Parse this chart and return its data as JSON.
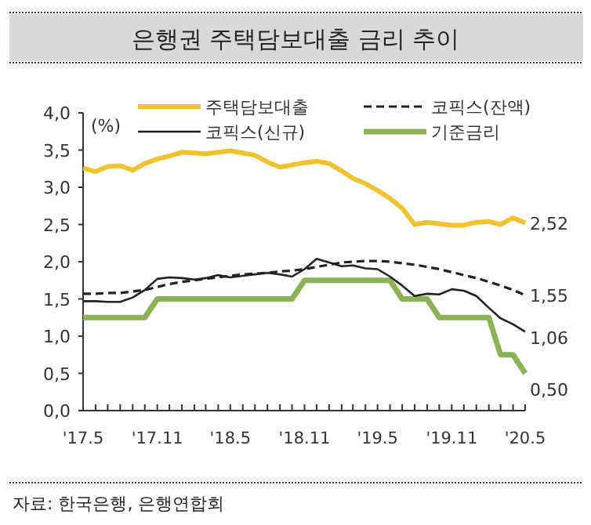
{
  "chart_data": {
    "type": "line",
    "title": "은행권 주택담보대출 금리 추이",
    "ylabel": "(%)",
    "annotations": [
      {
        "text": "2,52",
        "x": "2020-05",
        "y": 2.52
      },
      {
        "text": "1,55",
        "x": "2020-05",
        "y": 1.55
      },
      {
        "text": "1,06",
        "x": "2020-05",
        "y": 1.06
      },
      {
        "text": "0,50",
        "x": "2020-05",
        "y": 0.5
      },
      "자료: 한국은행, 은행연합회"
    ],
    "x": [
      "2017-05",
      "2017-06",
      "2017-07",
      "2017-08",
      "2017-09",
      "2017-10",
      "2017-11",
      "2017-12",
      "2018-01",
      "2018-02",
      "2018-03",
      "2018-04",
      "2018-05",
      "2018-06",
      "2018-07",
      "2018-08",
      "2018-09",
      "2018-10",
      "2018-11",
      "2018-12",
      "2019-01",
      "2019-02",
      "2019-03",
      "2019-04",
      "2019-05",
      "2019-06",
      "2019-07",
      "2019-08",
      "2019-09",
      "2019-10",
      "2019-11",
      "2019-12",
      "2020-01",
      "2020-02",
      "2020-03",
      "2020-04",
      "2020-05"
    ],
    "series": [
      {
        "name": "주택담보대출",
        "color": "#f2c12e",
        "line_style": "solid",
        "values": [
          3.26,
          3.21,
          3.28,
          3.29,
          3.23,
          3.32,
          3.38,
          3.42,
          3.47,
          3.46,
          3.45,
          3.47,
          3.49,
          3.46,
          3.43,
          3.34,
          3.27,
          3.3,
          3.33,
          3.35,
          3.32,
          3.22,
          3.12,
          3.05,
          2.96,
          2.85,
          2.72,
          2.5,
          2.53,
          2.51,
          2.49,
          2.49,
          2.53,
          2.54,
          2.5,
          2.59,
          2.52
        ]
      },
      {
        "name": "코픽스(잔액)",
        "color": "#222222",
        "line_style": "dashed",
        "values": [
          1.57,
          1.57,
          1.58,
          1.58,
          1.6,
          1.62,
          1.66,
          1.7,
          1.73,
          1.75,
          1.77,
          1.79,
          1.81,
          1.83,
          1.84,
          1.85,
          1.87,
          1.88,
          1.9,
          1.93,
          1.96,
          1.99,
          2.0,
          2.01,
          2.01,
          2.0,
          1.98,
          1.96,
          1.93,
          1.9,
          1.86,
          1.82,
          1.78,
          1.73,
          1.68,
          1.62,
          1.55
        ]
      },
      {
        "name": "코픽스(신규)",
        "color": "#222222",
        "line_style": "solid",
        "values": [
          1.47,
          1.47,
          1.46,
          1.46,
          1.52,
          1.62,
          1.77,
          1.79,
          1.78,
          1.76,
          1.78,
          1.82,
          1.79,
          1.81,
          1.83,
          1.85,
          1.83,
          1.8,
          1.9,
          2.04,
          1.99,
          1.94,
          1.95,
          1.91,
          1.9,
          1.8,
          1.68,
          1.54,
          1.57,
          1.56,
          1.63,
          1.61,
          1.54,
          1.38,
          1.24,
          1.16,
          1.06
        ]
      },
      {
        "name": "기준금리",
        "color": "#8db255",
        "line_style": "solid",
        "values": [
          1.25,
          1.25,
          1.25,
          1.25,
          1.25,
          1.25,
          1.5,
          1.5,
          1.5,
          1.5,
          1.5,
          1.5,
          1.5,
          1.5,
          1.5,
          1.5,
          1.5,
          1.5,
          1.75,
          1.75,
          1.75,
          1.75,
          1.75,
          1.75,
          1.75,
          1.75,
          1.5,
          1.5,
          1.5,
          1.25,
          1.25,
          1.25,
          1.25,
          1.25,
          0.75,
          0.75,
          0.5
        ]
      }
    ],
    "ylim": [
      0,
      4
    ],
    "yticks": [
      {
        "value": 0,
        "label": "0,0"
      },
      {
        "value": 0.5,
        "label": "0,5"
      },
      {
        "value": 1,
        "label": "1,0"
      },
      {
        "value": 1.5,
        "label": "1,5"
      },
      {
        "value": 2,
        "label": "2,0"
      },
      {
        "value": 2.5,
        "label": "2,5"
      },
      {
        "value": 3,
        "label": "3,0"
      },
      {
        "value": 3.5,
        "label": "3,5"
      },
      {
        "value": 4,
        "label": "4,0"
      }
    ],
    "xlim": [
      "2017-05",
      "2020-05"
    ],
    "xticks": [
      {
        "value": "2017-05",
        "label": "'17.5"
      },
      {
        "value": "2017-06",
        "label": null
      },
      {
        "value": "2017-07",
        "label": null
      },
      {
        "value": "2017-08",
        "label": null
      },
      {
        "value": "2017-09",
        "label": null
      },
      {
        "value": "2017-10",
        "label": null
      },
      {
        "value": "2017-11",
        "label": "'17.11"
      },
      {
        "value": "2017-12",
        "label": null
      },
      {
        "value": "2018-01",
        "label": null
      },
      {
        "value": "2018-02",
        "label": null
      },
      {
        "value": "2018-03",
        "label": null
      },
      {
        "value": "2018-04",
        "label": null
      },
      {
        "value": "2018-05",
        "label": "'18.5"
      },
      {
        "value": "2018-06",
        "label": null
      },
      {
        "value": "2018-07",
        "label": null
      },
      {
        "value": "2018-08",
        "label": null
      },
      {
        "value": "2018-09",
        "label": null
      },
      {
        "value": "2018-10",
        "label": null
      },
      {
        "value": "2018-11",
        "label": "'18.11"
      },
      {
        "value": "2018-12",
        "label": null
      },
      {
        "value": "2019-01",
        "label": null
      },
      {
        "value": "2019-02",
        "label": null
      },
      {
        "value": "2019-03",
        "label": null
      },
      {
        "value": "2019-04",
        "label": null
      },
      {
        "value": "2019-05",
        "label": "'19.5"
      },
      {
        "value": "2019-06",
        "label": null
      },
      {
        "value": "2019-07",
        "label": null
      },
      {
        "value": "2019-08",
        "label": null
      },
      {
        "value": "2019-09",
        "label": null
      },
      {
        "value": "2019-10",
        "label": null
      },
      {
        "value": "2019-11",
        "label": "'19.11"
      },
      {
        "value": "2019-12",
        "label": null
      },
      {
        "value": "2020-01",
        "label": null
      },
      {
        "value": "2020-02",
        "label": null
      },
      {
        "value": "2020-03",
        "label": null
      },
      {
        "value": "2020-04",
        "label": null
      },
      {
        "value": "2020-05",
        "label": "'20.5"
      }
    ],
    "grid": false,
    "legend": "top",
    "marker": "none"
  }
}
